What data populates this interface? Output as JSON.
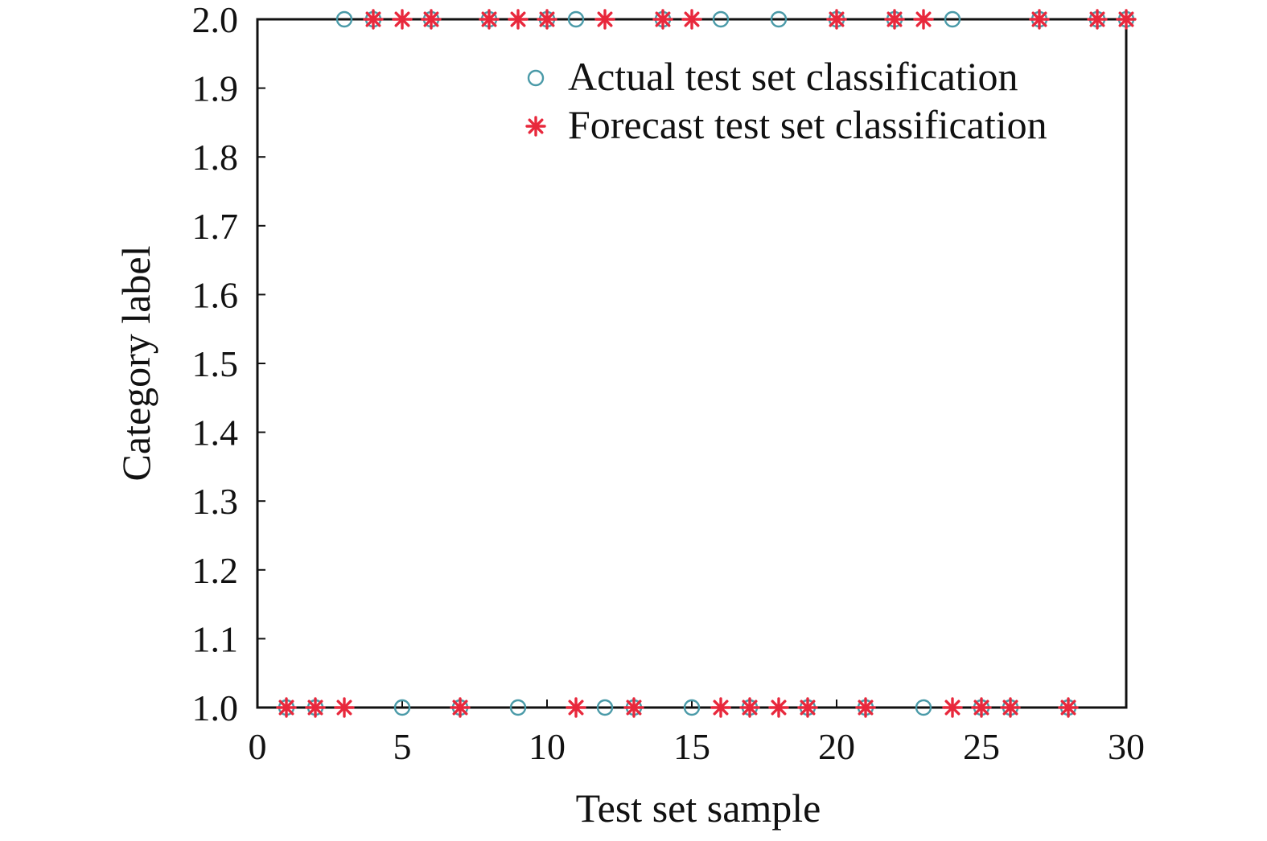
{
  "chart_data": {
    "type": "scatter",
    "title": "",
    "xlabel": "Test set sample",
    "ylabel": "Category label",
    "xlim": [
      0,
      30
    ],
    "ylim": [
      1.0,
      2.0
    ],
    "x_ticks": [
      "0",
      "5",
      "10",
      "15",
      "20",
      "25",
      "30"
    ],
    "y_ticks": [
      "1.0",
      "1.1",
      "1.2",
      "1.3",
      "1.4",
      "1.5",
      "1.6",
      "1.7",
      "1.8",
      "1.9",
      "2.0"
    ],
    "grid": false,
    "legend_position": "top-right",
    "series": [
      {
        "name": "Actual test set classification",
        "marker": "circle",
        "color": "#4a9aa8",
        "x": [
          1,
          2,
          3,
          4,
          5,
          6,
          7,
          8,
          9,
          10,
          11,
          12,
          13,
          14,
          15,
          16,
          17,
          18,
          19,
          20,
          21,
          22,
          23,
          24,
          25,
          26,
          27,
          28,
          29,
          30
        ],
        "y": [
          1,
          1,
          2,
          2,
          1,
          2,
          1,
          2,
          1,
          2,
          2,
          1,
          1,
          2,
          1,
          2,
          1,
          2,
          1,
          2,
          1,
          2,
          1,
          2,
          1,
          1,
          2,
          1,
          2,
          2
        ]
      },
      {
        "name": "Forecast test set classification",
        "marker": "star",
        "color": "#e8283c",
        "x": [
          1,
          2,
          3,
          4,
          5,
          6,
          7,
          8,
          9,
          10,
          11,
          12,
          13,
          14,
          15,
          16,
          17,
          18,
          19,
          20,
          21,
          22,
          23,
          24,
          25,
          26,
          27,
          28,
          29,
          30
        ],
        "y": [
          1,
          1,
          1,
          2,
          2,
          2,
          1,
          2,
          2,
          2,
          1,
          2,
          1,
          2,
          2,
          1,
          1,
          1,
          1,
          2,
          1,
          2,
          2,
          1,
          1,
          1,
          2,
          1,
          2,
          2
        ]
      }
    ]
  }
}
